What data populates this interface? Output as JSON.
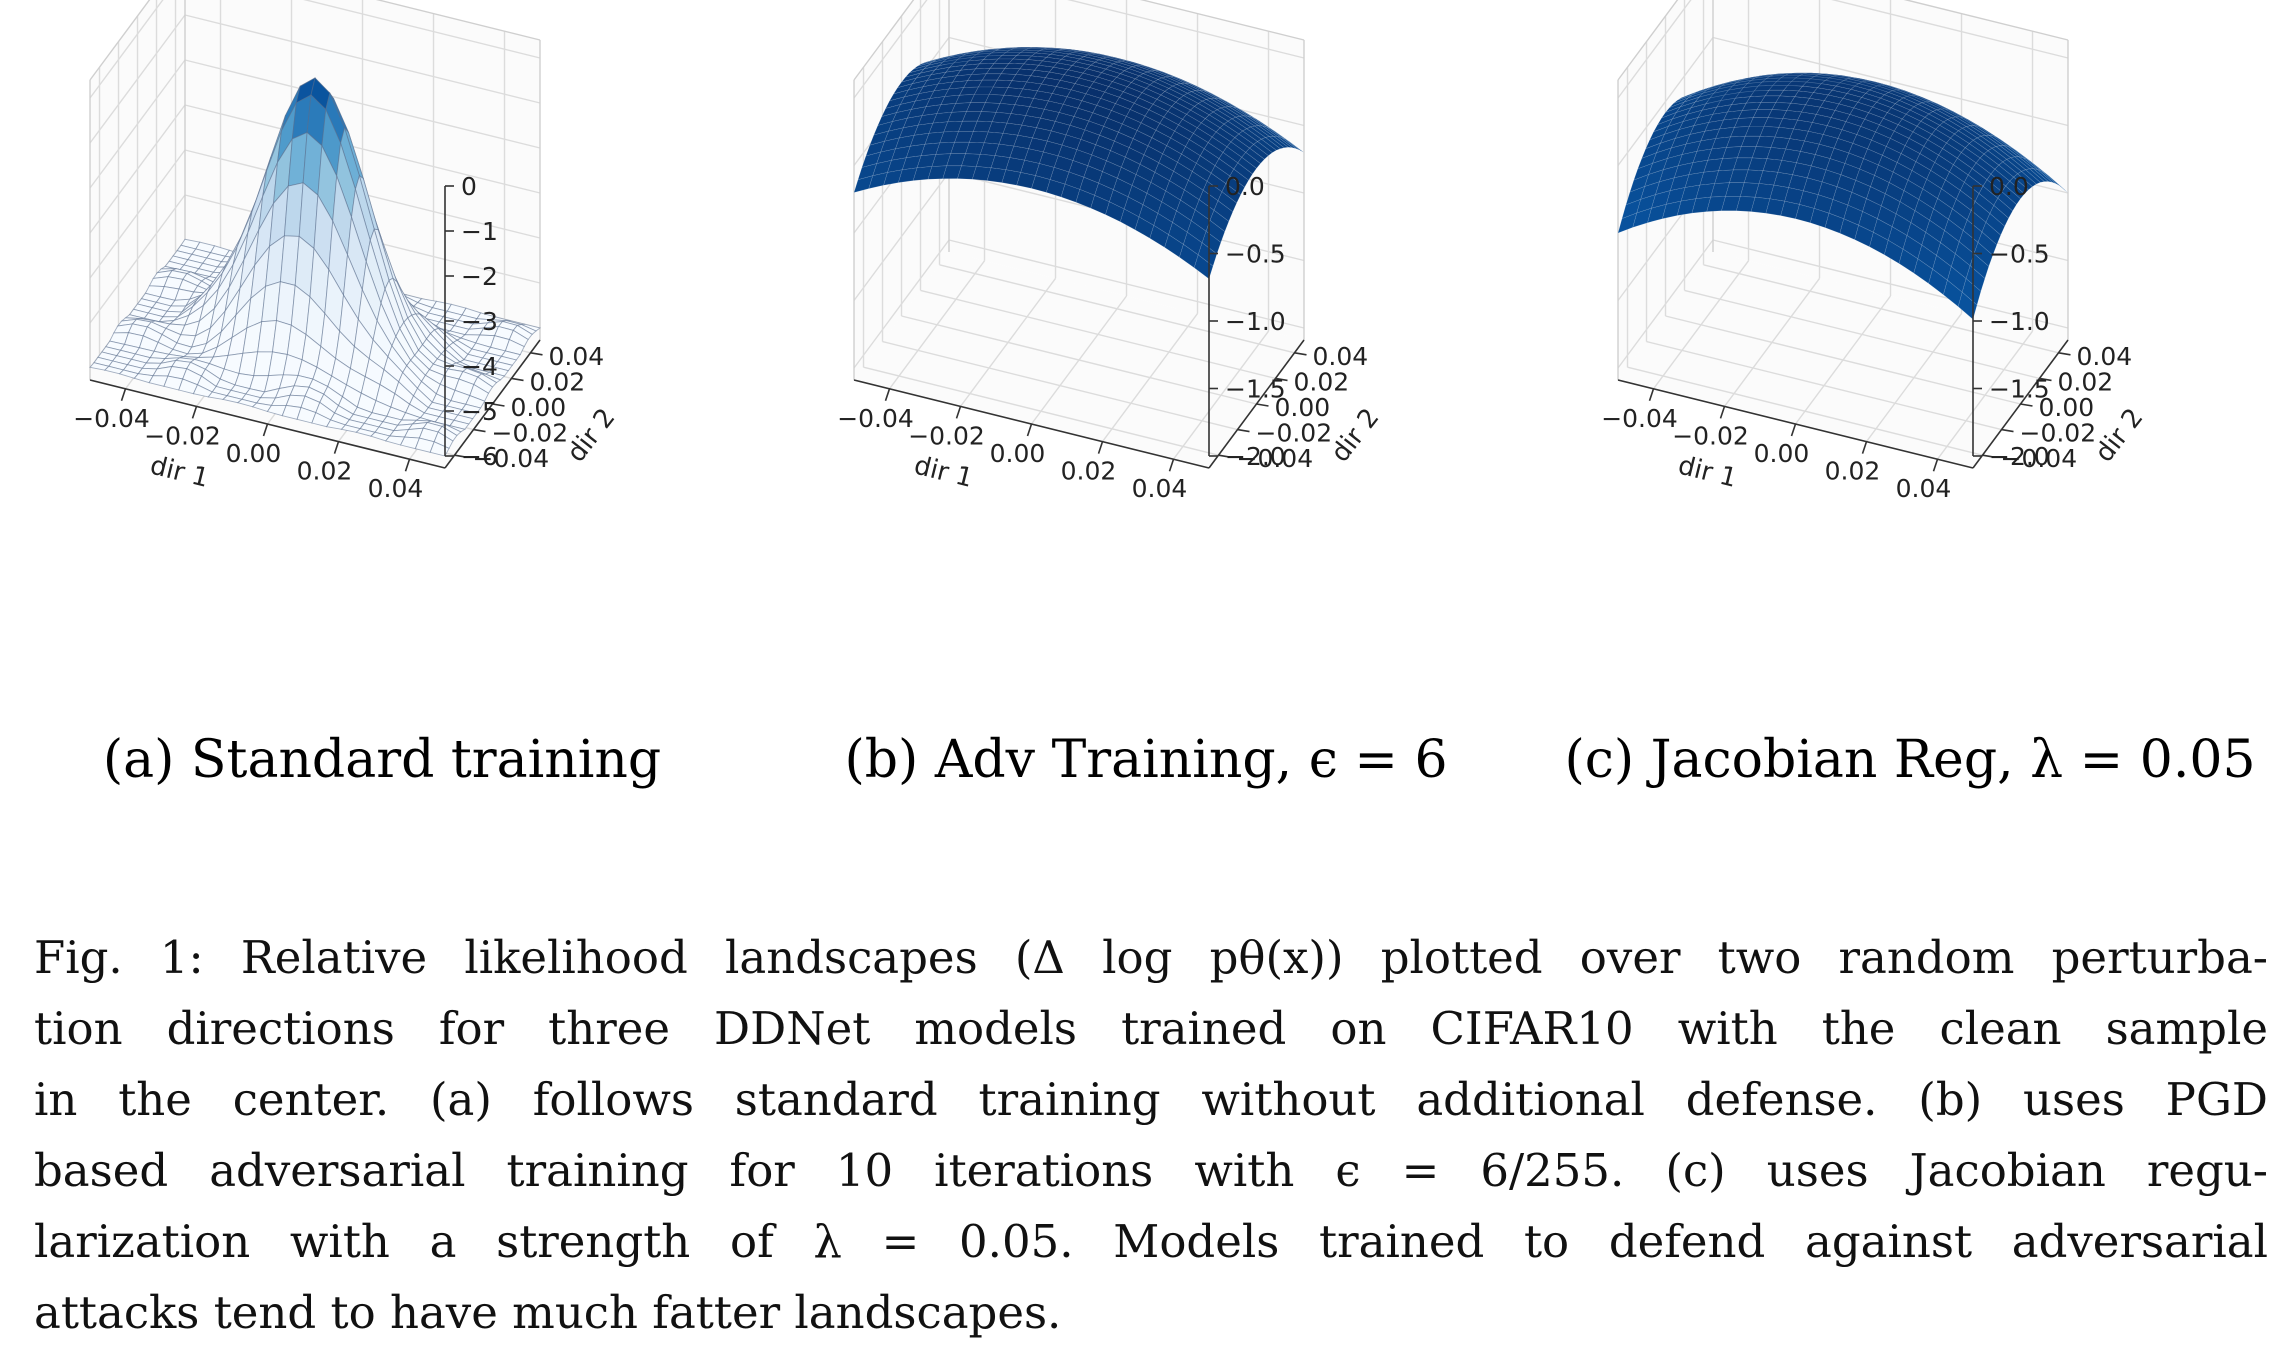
{
  "figure": {
    "caption_lines": [
      "Fig. 1: Relative likelihood landscapes (Δ log pθ(x)) plotted over two random perturba-",
      "tion directions for three DDNet models trained on CIFAR10 with the clean sample",
      "in the center. (a) follows standard training without additional defense. (b) uses PGD",
      "based adversarial training for 10 iterations with ϵ = 6/255. (c) uses Jacobian regu-",
      "larization with a strength of λ = 0.05. Models trained to defend against adversarial",
      "attacks tend to have much fatter landscapes."
    ]
  },
  "chart_data": [
    {
      "type": "surface3d",
      "subcaption": "(a) Standard training",
      "xlabel": "dir 1",
      "ylabel": "dir 2",
      "x_ticks": [
        "−0.04",
        "−0.02",
        "0.00",
        "0.02",
        "0.04"
      ],
      "y_ticks": [
        "−0.04",
        "−0.02",
        "0.00",
        "0.02",
        "0.04"
      ],
      "z_ticks": [
        "0",
        "−1",
        "−2",
        "−3",
        "−4",
        "−5",
        "−6"
      ],
      "zlim": [
        -6,
        0
      ],
      "xlim": [
        -0.05,
        0.05
      ],
      "ylim": [
        -0.05,
        0.05
      ],
      "surface": {
        "shape": "sharp peak",
        "peak": 0,
        "edge_min": -6,
        "width": 0.014
      },
      "colormap": "Blues"
    },
    {
      "type": "surface3d",
      "subcaption": "(b) Adv Training, ϵ = 6",
      "xlabel": "dir 1",
      "ylabel": "dir 2",
      "x_ticks": [
        "−0.04",
        "−0.02",
        "0.00",
        "0.02",
        "0.04"
      ],
      "y_ticks": [
        "−0.04",
        "−0.02",
        "0.00",
        "0.02",
        "0.04"
      ],
      "z_ticks": [
        "0.0",
        "−0.5",
        "−1.0",
        "−1.5",
        "−2.0"
      ],
      "zlim": [
        -2.0,
        0.0
      ],
      "xlim": [
        -0.05,
        0.05
      ],
      "ylim": [
        -0.05,
        0.05
      ],
      "surface": {
        "shape": "flat dome",
        "peak": 0,
        "edge_min": -0.7,
        "width": 0.2
      },
      "colormap": "Blues"
    },
    {
      "type": "surface3d",
      "subcaption": "(c) Jacobian Reg, λ = 0.05",
      "xlabel": "dir 1",
      "ylabel": "dir 2",
      "x_ticks": [
        "−0.04",
        "−0.02",
        "0.00",
        "0.02",
        "0.04"
      ],
      "y_ticks": [
        "−0.04",
        "−0.02",
        "0.00",
        "0.02",
        "0.04"
      ],
      "z_ticks": [
        "0.0",
        "−0.5",
        "−1.0",
        "−1.5",
        "−2.0"
      ],
      "zlim": [
        -2.0,
        0.0
      ],
      "xlim": [
        -0.05,
        0.05
      ],
      "ylim": [
        -0.05,
        0.05
      ],
      "surface": {
        "shape": "flat dome",
        "peak": -0.15,
        "edge_min": -1.0,
        "width": 0.12
      },
      "colormap": "Blues"
    }
  ]
}
